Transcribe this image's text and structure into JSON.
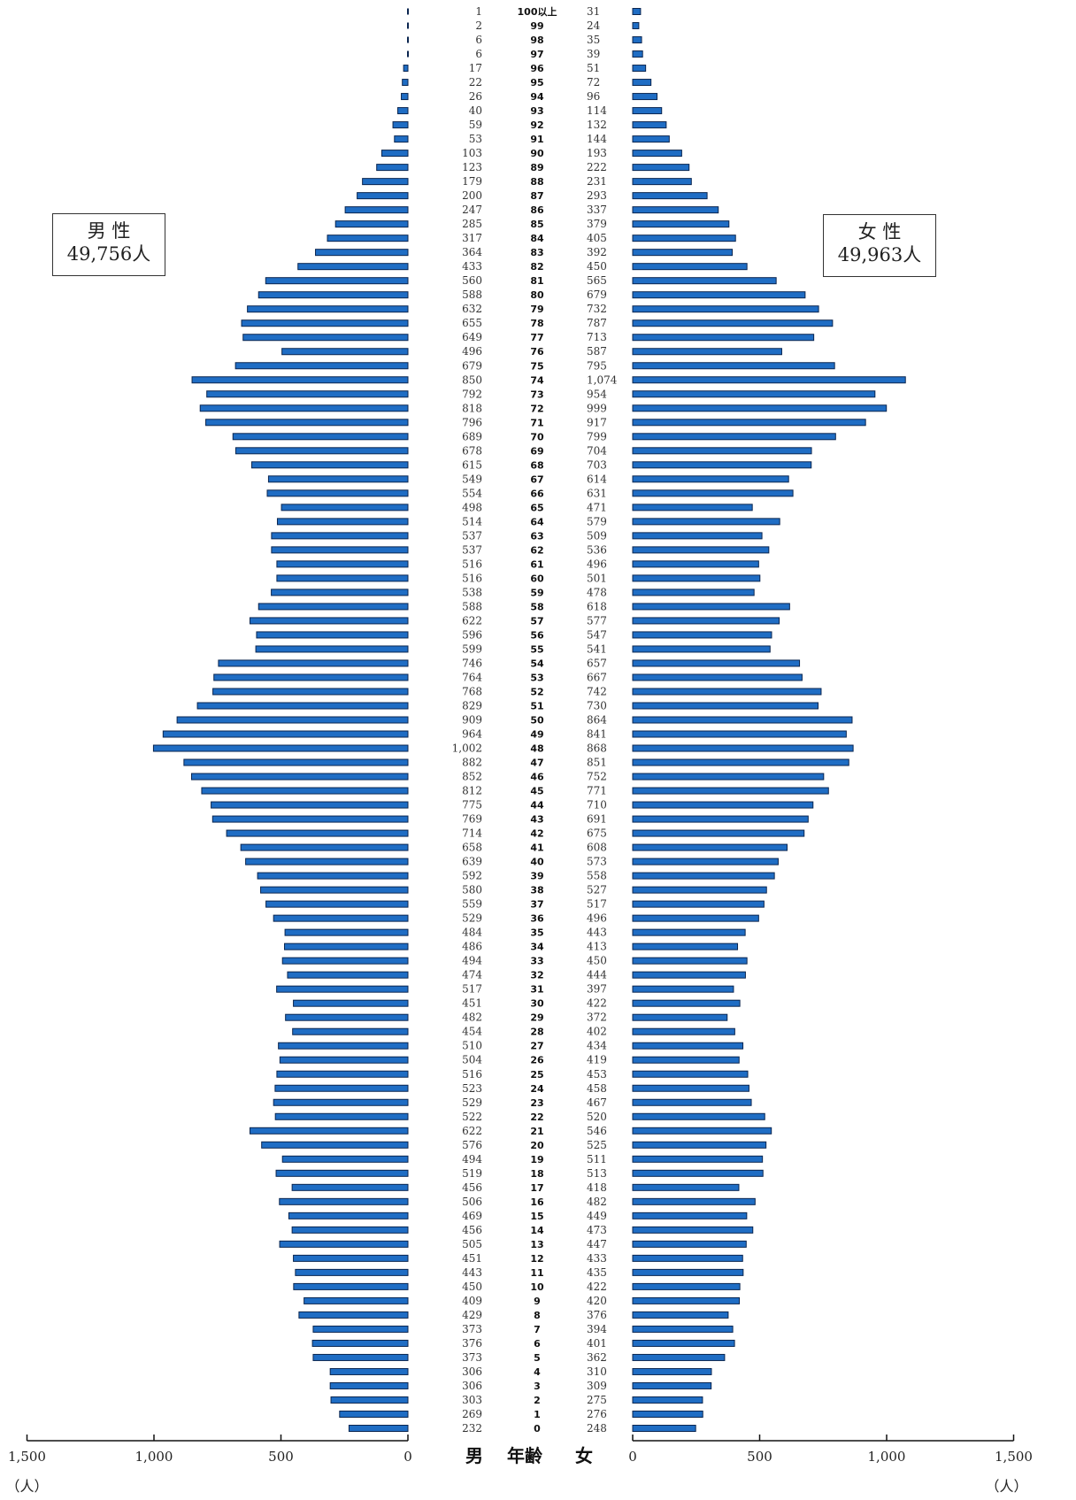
{
  "chart_data": {
    "type": "bar",
    "orientation": "horizontal",
    "layout": "population-pyramid",
    "categories": [
      "100以上",
      "99",
      "98",
      "97",
      "96",
      "95",
      "94",
      "93",
      "92",
      "91",
      "90",
      "89",
      "88",
      "87",
      "86",
      "85",
      "84",
      "83",
      "82",
      "81",
      "80",
      "79",
      "78",
      "77",
      "76",
      "75",
      "74",
      "73",
      "72",
      "71",
      "70",
      "69",
      "68",
      "67",
      "66",
      "65",
      "64",
      "63",
      "62",
      "61",
      "60",
      "59",
      "58",
      "57",
      "56",
      "55",
      "54",
      "53",
      "52",
      "51",
      "50",
      "49",
      "48",
      "47",
      "46",
      "45",
      "44",
      "43",
      "42",
      "41",
      "40",
      "39",
      "38",
      "37",
      "36",
      "35",
      "34",
      "33",
      "32",
      "31",
      "30",
      "29",
      "28",
      "27",
      "26",
      "25",
      "24",
      "23",
      "22",
      "21",
      "20",
      "19",
      "18",
      "17",
      "16",
      "15",
      "14",
      "13",
      "12",
      "11",
      "10",
      "9",
      "8",
      "7",
      "6",
      "5",
      "4",
      "3",
      "2",
      "1",
      "0"
    ],
    "series": [
      {
        "name": "男 性",
        "values": [
          1,
          2,
          6,
          6,
          17,
          22,
          26,
          40,
          59,
          53,
          103,
          123,
          179,
          200,
          247,
          285,
          317,
          364,
          433,
          560,
          588,
          632,
          655,
          649,
          496,
          679,
          850,
          792,
          818,
          796,
          689,
          678,
          615,
          549,
          554,
          498,
          514,
          537,
          537,
          516,
          516,
          538,
          588,
          622,
          596,
          599,
          746,
          764,
          768,
          829,
          909,
          964,
          1002,
          882,
          852,
          812,
          775,
          769,
          714,
          658,
          639,
          592,
          580,
          559,
          529,
          484,
          486,
          494,
          474,
          517,
          451,
          482,
          454,
          510,
          504,
          516,
          523,
          529,
          522,
          622,
          576,
          494,
          519,
          456,
          506,
          469,
          456,
          505,
          451,
          443,
          450,
          409,
          429,
          373,
          376,
          373,
          306,
          306,
          303,
          269,
          232
        ],
        "labels": [
          "1",
          "2",
          "6",
          "6",
          "17",
          "22",
          "26",
          "40",
          "59",
          "53",
          "103",
          "123",
          "179",
          "200",
          "247",
          "285",
          "317",
          "364",
          "433",
          "560",
          "588",
          "632",
          "655",
          "649",
          "496",
          "679",
          "850",
          "792",
          "818",
          "796",
          "689",
          "678",
          "615",
          "549",
          "554",
          "498",
          "514",
          "537",
          "537",
          "516",
          "516",
          "538",
          "588",
          "622",
          "596",
          "599",
          "746",
          "764",
          "768",
          "829",
          "909",
          "964",
          "1,002",
          "882",
          "852",
          "812",
          "775",
          "769",
          "714",
          "658",
          "639",
          "592",
          "580",
          "559",
          "529",
          "484",
          "486",
          "494",
          "474",
          "517",
          "451",
          "482",
          "454",
          "510",
          "504",
          "516",
          "523",
          "529",
          "522",
          "622",
          "576",
          "494",
          "519",
          "456",
          "506",
          "469",
          "456",
          "505",
          "451",
          "443",
          "450",
          "409",
          "429",
          "373",
          "376",
          "373",
          "306",
          "306",
          "303",
          "269",
          "232"
        ]
      },
      {
        "name": "女 性",
        "values": [
          31,
          24,
          35,
          39,
          51,
          72,
          96,
          114,
          132,
          144,
          193,
          222,
          231,
          293,
          337,
          379,
          405,
          392,
          450,
          565,
          679,
          732,
          787,
          713,
          587,
          795,
          1074,
          954,
          999,
          917,
          799,
          704,
          703,
          614,
          631,
          471,
          579,
          509,
          536,
          496,
          501,
          478,
          618,
          577,
          547,
          541,
          657,
          667,
          742,
          730,
          864,
          841,
          868,
          851,
          752,
          771,
          710,
          691,
          675,
          608,
          573,
          558,
          527,
          517,
          496,
          443,
          413,
          450,
          444,
          397,
          422,
          372,
          402,
          434,
          419,
          453,
          458,
          467,
          520,
          546,
          525,
          511,
          513,
          418,
          482,
          449,
          473,
          447,
          433,
          435,
          422,
          420,
          376,
          394,
          401,
          362,
          310,
          309,
          275,
          276,
          248
        ],
        "labels": [
          "31",
          "24",
          "35",
          "39",
          "51",
          "72",
          "96",
          "114",
          "132",
          "144",
          "193",
          "222",
          "231",
          "293",
          "337",
          "379",
          "405",
          "392",
          "450",
          "565",
          "679",
          "732",
          "787",
          "713",
          "587",
          "795",
          "1,074",
          "954",
          "999",
          "917",
          "799",
          "704",
          "703",
          "614",
          "631",
          "471",
          "579",
          "509",
          "536",
          "496",
          "501",
          "478",
          "618",
          "577",
          "547",
          "541",
          "657",
          "667",
          "742",
          "730",
          "864",
          "841",
          "868",
          "851",
          "752",
          "771",
          "710",
          "691",
          "675",
          "608",
          "573",
          "558",
          "527",
          "517",
          "496",
          "443",
          "413",
          "450",
          "444",
          "397",
          "422",
          "372",
          "402",
          "434",
          "419",
          "453",
          "458",
          "467",
          "520",
          "546",
          "525",
          "511",
          "513",
          "418",
          "482",
          "449",
          "473",
          "447",
          "433",
          "435",
          "422",
          "420",
          "376",
          "394",
          "401",
          "362",
          "310",
          "309",
          "275",
          "276",
          "248"
        ]
      }
    ],
    "x_ticks": [
      {
        "value": 1500,
        "label": "1,500"
      },
      {
        "value": 1000,
        "label": "1,000"
      },
      {
        "value": 500,
        "label": "500"
      },
      {
        "value": 0,
        "label": "0"
      }
    ],
    "xlim": [
      0,
      1500
    ],
    "unit_label": "（人）",
    "center_labels": {
      "male": "男",
      "age": "年齢",
      "female": "女"
    },
    "legend": {
      "male_name": "男 性",
      "male_total": "49,756人",
      "female_name": "女 性",
      "female_total": "49,963人"
    },
    "colors": {
      "bar_fill": "#1f6dc4",
      "bar_stroke": "#0b2650"
    },
    "grid": false
  }
}
